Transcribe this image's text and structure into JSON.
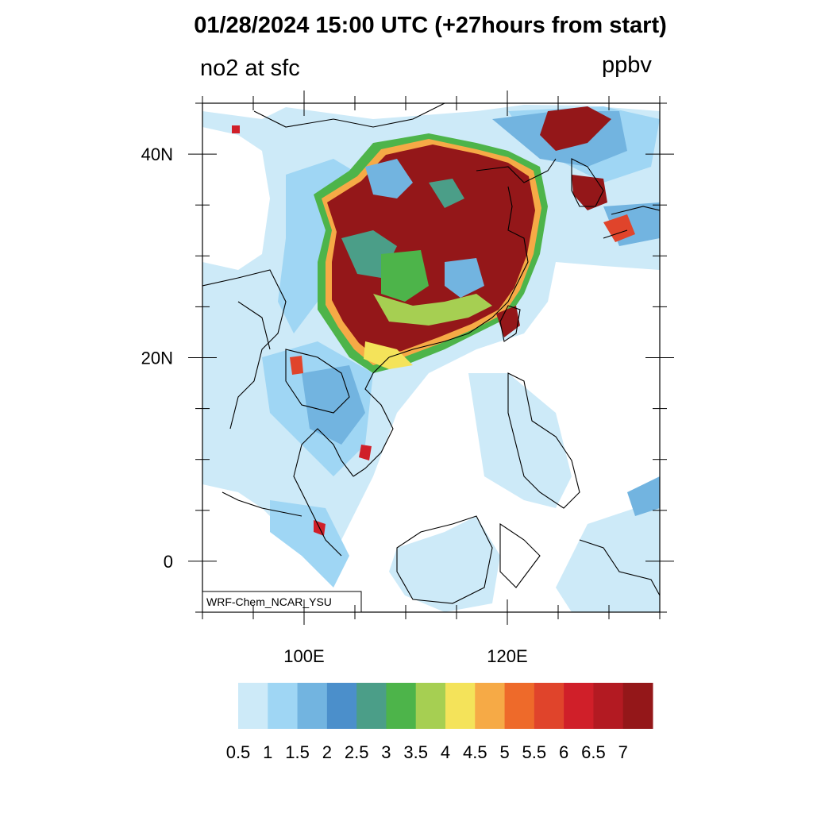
{
  "title": "01/28/2024 15:00 UTC (+27hours from start)",
  "variable_label": "no2 at sfc",
  "units_label": "ppbv",
  "model_label": "WRF-Chem_NCAR_YSU",
  "map": {
    "projection": "cylindrical-equidistant",
    "lon_range": [
      90,
      135
    ],
    "lat_range": [
      -5,
      45
    ],
    "lon_ticks": [
      {
        "value": 100,
        "label": "100E"
      },
      {
        "value": 120,
        "label": "120E"
      }
    ],
    "lat_ticks": [
      {
        "value": 40,
        "label": "40N"
      },
      {
        "value": 20,
        "label": "20N"
      },
      {
        "value": 0,
        "label": "0"
      }
    ]
  },
  "colorbar": {
    "colors": [
      "#cdeaf8",
      "#9fd6f4",
      "#72b4e0",
      "#4b8fcb",
      "#4b9e88",
      "#4db44a",
      "#a6cf52",
      "#f4e35a",
      "#f6aa46",
      "#ee6a2a",
      "#e0442b",
      "#d01f29",
      "#b31a22",
      "#941719"
    ],
    "labels": [
      "0.5",
      "1",
      "1.5",
      "2",
      "2.5",
      "3",
      "3.5",
      "4",
      "4.5",
      "5",
      "5.5",
      "6",
      "6.5",
      "7"
    ]
  }
}
